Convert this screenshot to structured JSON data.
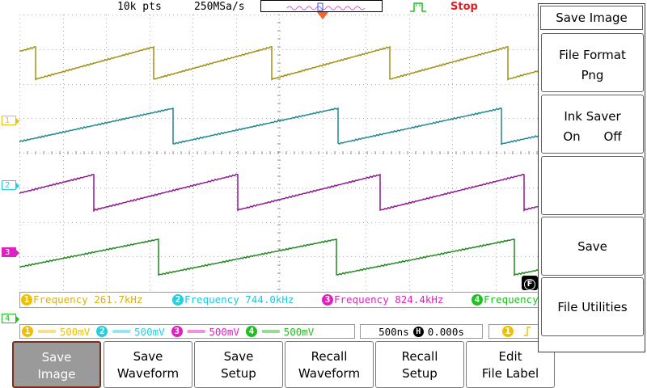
{
  "status": {
    "points": "10k pts",
    "sample_rate": "250MSa/s",
    "run_state": "Stop",
    "trigger_icon": "trigger-edge-icon"
  },
  "channels": [
    {
      "id": "1",
      "color": "#f0c000",
      "wave_color": "#a09010",
      "frequency": "Frequency 261.7kHz",
      "scale": "500mV"
    },
    {
      "id": "2",
      "color": "#20d0e0",
      "wave_color": "#208890",
      "frequency": "Frequency 744.0kHz",
      "scale": "500mV"
    },
    {
      "id": "3",
      "color": "#e020c0",
      "wave_color": "#901890",
      "frequency": "Frequency 824.4kHz",
      "scale": "500mV"
    },
    {
      "id": "4",
      "color": "#20c020",
      "wave_color": "#208820",
      "frequency": "Frequency",
      "scale": "500mV"
    }
  ],
  "coupling_symbol": "═══",
  "timebase": {
    "scale": "500ns",
    "h_marker": "H",
    "offset": "0.000s"
  },
  "trigger": {
    "source": "1",
    "badge": "F"
  },
  "menu": {
    "title": "Save Image",
    "items": [
      {
        "line1": "File Format",
        "line2": "Png"
      },
      {
        "line1": "Ink Saver",
        "opt1": "On",
        "opt2": "Off"
      },
      {
        "line1": ""
      },
      {
        "line1": "Save"
      },
      {
        "line1": "File Utilities"
      }
    ]
  },
  "softkeys": [
    {
      "line1": "Save",
      "line2": "Image",
      "active": true
    },
    {
      "line1": "Save",
      "line2": "Waveform",
      "active": false
    },
    {
      "line1": "Save",
      "line2": "Setup",
      "active": false
    },
    {
      "line1": "Recall",
      "line2": "Waveform",
      "active": false
    },
    {
      "line1": "Recall",
      "line2": "Setup",
      "active": false
    },
    {
      "line1": "Edit",
      "line2": "File Label",
      "active": false
    }
  ]
}
